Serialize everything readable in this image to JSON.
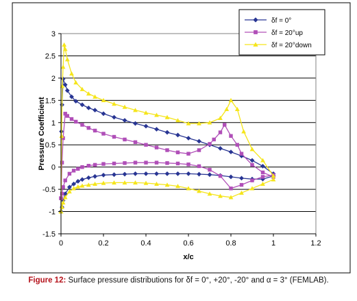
{
  "caption": {
    "label": "Figure 12:",
    "text": "Surface pressure distributions for δf = 0°, +20°, -20° and α = 3° (FEMLAB)."
  },
  "chart_data": {
    "type": "line",
    "xlabel": "x/c",
    "ylabel": "Pressure Coefficient",
    "xlim": [
      0,
      1.2
    ],
    "ylim": [
      -1.5,
      3
    ],
    "x_ticks": [
      0,
      0.2,
      0.4,
      0.6,
      0.8,
      1,
      1.2
    ],
    "x_tick_labels": [
      "0",
      "0.2",
      "0.4",
      "0.6",
      "0.8",
      "1",
      "1.2"
    ],
    "y_ticks": [
      -1.5,
      -1,
      -0.5,
      0,
      0.5,
      1,
      1.5,
      2,
      2.5,
      3
    ],
    "y_tick_labels": [
      "-1.5",
      "-1",
      "-0.5",
      "0",
      "0.5",
      "1",
      "1.5",
      "2",
      "2.5",
      "3"
    ],
    "grid": "horizontal",
    "legend_position": "top-right",
    "series": [
      {
        "name": "δf = 0°",
        "color": "#283593",
        "marker": "diamond",
        "upper": {
          "x": [
            0,
            0.002,
            0.005,
            0.01,
            0.02,
            0.03,
            0.05,
            0.07,
            0.1,
            0.13,
            0.16,
            0.2,
            0.25,
            0.3,
            0.35,
            0.4,
            0.45,
            0.5,
            0.55,
            0.6,
            0.65,
            0.7,
            0.75,
            0.8,
            0.85,
            0.9,
            0.95,
            1.0
          ],
          "y": [
            -1.0,
            0.8,
            1.4,
            1.98,
            1.85,
            1.72,
            1.58,
            1.48,
            1.4,
            1.33,
            1.28,
            1.2,
            1.12,
            1.05,
            0.98,
            0.92,
            0.85,
            0.78,
            0.72,
            0.65,
            0.58,
            0.5,
            0.42,
            0.34,
            0.25,
            0.15,
            0.02,
            -0.15
          ]
        },
        "lower": {
          "x": [
            0,
            0.005,
            0.01,
            0.02,
            0.04,
            0.06,
            0.08,
            0.1,
            0.13,
            0.16,
            0.2,
            0.25,
            0.3,
            0.35,
            0.4,
            0.45,
            0.5,
            0.55,
            0.6,
            0.65,
            0.7,
            0.75,
            0.8,
            0.85,
            0.9,
            0.95,
            1.0
          ],
          "y": [
            -1.0,
            -0.9,
            -0.75,
            -0.6,
            -0.45,
            -0.38,
            -0.32,
            -0.28,
            -0.24,
            -0.21,
            -0.18,
            -0.17,
            -0.16,
            -0.15,
            -0.15,
            -0.15,
            -0.15,
            -0.15,
            -0.15,
            -0.16,
            -0.17,
            -0.19,
            -0.22,
            -0.25,
            -0.27,
            -0.27,
            -0.2
          ]
        }
      },
      {
        "name": "δf = 20°up",
        "color": "#b04fb8",
        "marker": "square",
        "upper": {
          "x": [
            0,
            0.005,
            0.01,
            0.02,
            0.03,
            0.05,
            0.07,
            0.1,
            0.13,
            0.16,
            0.2,
            0.25,
            0.3,
            0.35,
            0.4,
            0.45,
            0.5,
            0.55,
            0.6,
            0.65,
            0.7,
            0.72,
            0.75,
            0.77,
            0.8,
            0.83,
            0.85,
            0.9,
            0.95,
            1.0
          ],
          "y": [
            -0.7,
            0.1,
            0.65,
            1.2,
            1.15,
            1.08,
            1.02,
            0.95,
            0.88,
            0.82,
            0.75,
            0.68,
            0.62,
            0.56,
            0.5,
            0.44,
            0.38,
            0.33,
            0.3,
            0.38,
            0.52,
            0.62,
            0.78,
            0.95,
            0.7,
            0.5,
            0.3,
            0.05,
            -0.12,
            -0.22
          ]
        },
        "lower": {
          "x": [
            0,
            0.005,
            0.01,
            0.02,
            0.04,
            0.06,
            0.08,
            0.1,
            0.13,
            0.16,
            0.2,
            0.25,
            0.3,
            0.35,
            0.4,
            0.45,
            0.5,
            0.55,
            0.6,
            0.65,
            0.7,
            0.75,
            0.8,
            0.85,
            0.9,
            0.95,
            1.0
          ],
          "y": [
            -0.7,
            -0.6,
            -0.45,
            -0.3,
            -0.15,
            -0.08,
            -0.04,
            0.0,
            0.03,
            0.05,
            0.07,
            0.08,
            0.09,
            0.1,
            0.1,
            0.1,
            0.09,
            0.08,
            0.06,
            0.02,
            -0.06,
            -0.2,
            -0.48,
            -0.4,
            -0.3,
            -0.22,
            -0.18
          ]
        }
      },
      {
        "name": "δf = 20°down",
        "color": "#f5e51b",
        "marker": "triangle",
        "upper": {
          "x": [
            0,
            0.003,
            0.006,
            0.01,
            0.015,
            0.02,
            0.03,
            0.05,
            0.07,
            0.1,
            0.13,
            0.16,
            0.2,
            0.25,
            0.3,
            0.35,
            0.4,
            0.45,
            0.5,
            0.55,
            0.6,
            0.65,
            0.7,
            0.75,
            0.78,
            0.8,
            0.83,
            0.86,
            0.9,
            0.95,
            1.0
          ],
          "y": [
            -1.0,
            0.7,
            1.82,
            2.25,
            2.75,
            2.65,
            2.42,
            2.1,
            1.9,
            1.75,
            1.65,
            1.58,
            1.5,
            1.42,
            1.35,
            1.28,
            1.22,
            1.17,
            1.12,
            1.05,
            0.98,
            0.98,
            1.0,
            1.1,
            1.3,
            1.5,
            1.3,
            0.8,
            0.4,
            0.15,
            -0.2
          ]
        },
        "lower": {
          "x": [
            0,
            0.005,
            0.01,
            0.02,
            0.04,
            0.06,
            0.08,
            0.1,
            0.13,
            0.16,
            0.2,
            0.25,
            0.3,
            0.35,
            0.4,
            0.45,
            0.5,
            0.55,
            0.6,
            0.65,
            0.7,
            0.75,
            0.8,
            0.85,
            0.9,
            0.95,
            1.0
          ],
          "y": [
            -1.0,
            -0.9,
            -0.8,
            -0.68,
            -0.55,
            -0.48,
            -0.44,
            -0.42,
            -0.4,
            -0.38,
            -0.36,
            -0.35,
            -0.35,
            -0.35,
            -0.36,
            -0.38,
            -0.4,
            -0.43,
            -0.48,
            -0.54,
            -0.6,
            -0.65,
            -0.68,
            -0.58,
            -0.48,
            -0.38,
            -0.28
          ]
        }
      }
    ]
  }
}
